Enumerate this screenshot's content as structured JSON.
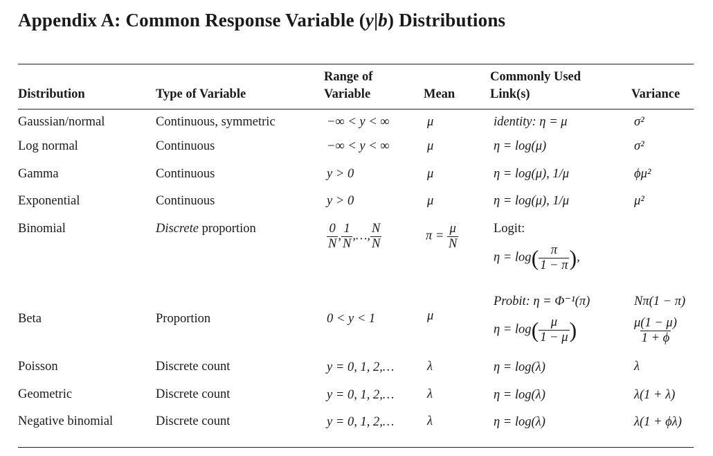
{
  "title": {
    "prefix": "Appendix A: Common Response Variable (",
    "y": "y",
    "bar": "|",
    "b": "b",
    "suffix": ") Distributions"
  },
  "headers": {
    "distribution": "Distribution",
    "type": "Type of Variable",
    "range_line1": "Range of",
    "range_line2": "Variable",
    "mean": "Mean",
    "link_line1": "Commonly Used",
    "link_line2": "Link(s)",
    "variance": "Variance"
  },
  "rows": {
    "gaussian": {
      "distribution": "Gaussian/normal",
      "type": "Continuous, symmetric",
      "range": "−∞ < y < ∞",
      "mean": "μ",
      "link": "identity: η = μ",
      "variance": "σ²"
    },
    "lognormal": {
      "distribution": "Log normal",
      "type": "Continuous",
      "range": "−∞ < y < ∞",
      "mean": "μ",
      "link": "η = log(μ)",
      "variance": "σ²"
    },
    "gamma": {
      "distribution": "Gamma",
      "type": "Continuous",
      "range": "y > 0",
      "mean": "μ",
      "link": "η = log(μ), 1/μ",
      "variance": "ϕμ²"
    },
    "exponential": {
      "distribution": "Exponential",
      "type": "Continuous",
      "range": "y > 0",
      "mean": "μ",
      "link": "η = log(μ), 1/μ",
      "variance": "μ²"
    },
    "binomial": {
      "distribution": "Binomial",
      "type_italic": "Discrete",
      "type_rest": " proportion",
      "range_num0": "0",
      "range_den0": "N",
      "range_sep1": ",",
      "range_num1": "1",
      "range_den1": "N",
      "range_sep2": ",…,",
      "range_numN": "N",
      "range_denN": "N",
      "mean_lhs": "π =",
      "mean_num": "μ",
      "mean_den": "N",
      "logit_label": "Logit:",
      "logit_lhs": "η = log",
      "logit_num": "π",
      "logit_den": "1 − π",
      "logit_comma": ",",
      "probit": "Probit:  η = Φ⁻¹(π)",
      "variance": "Nπ(1 − π)"
    },
    "beta": {
      "distribution": "Beta",
      "type": "Proportion",
      "range": "0 < y < 1",
      "mean": "μ",
      "link_lhs": "η = log",
      "link_num": "μ",
      "link_den": "1 − μ",
      "variance_num": "μ(1 − μ)",
      "variance_den": "1 + ϕ"
    },
    "poisson": {
      "distribution": "Poisson",
      "type": "Discrete count",
      "range": "y = 0, 1, 2,…",
      "mean": "λ",
      "link": "η = log(λ)",
      "variance": "λ"
    },
    "geometric": {
      "distribution": "Geometric",
      "type": "Discrete count",
      "range": "y = 0, 1, 2,…",
      "mean": "λ",
      "link": "η = log(λ)",
      "variance": "λ(1 + λ)"
    },
    "negbinomial": {
      "distribution": "Negative binomial",
      "type": "Discrete count",
      "range": "y = 0, 1, 2,…",
      "mean": "λ",
      "link": "η = log(λ)",
      "variance": "λ(1 + ϕλ)"
    }
  }
}
